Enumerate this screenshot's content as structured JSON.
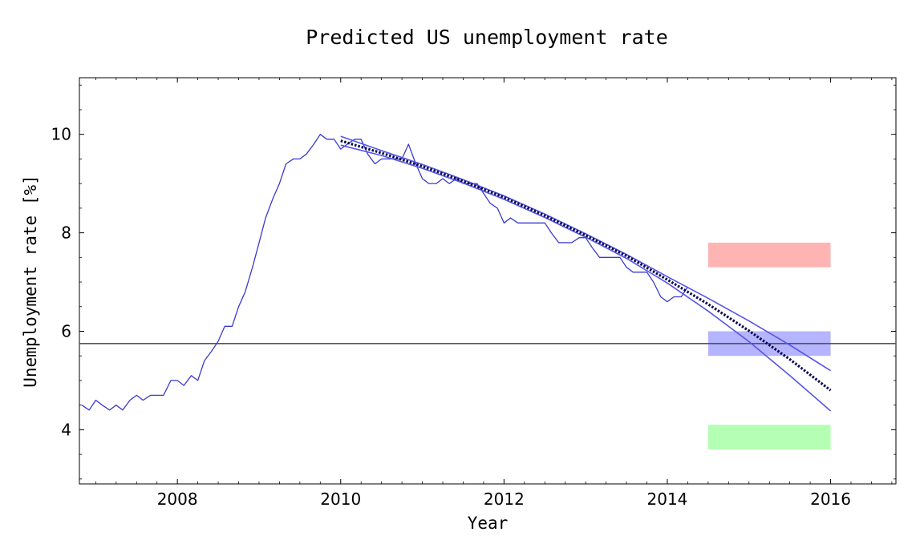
{
  "chart_data": {
    "type": "line",
    "title": "Predicted US unemployment rate",
    "xlabel": "Year",
    "ylabel": "Unemployment rate [%]",
    "xlim": [
      2006.8,
      2016.8
    ],
    "ylim": [
      2.9,
      11.15
    ],
    "x_ticks": [
      2008,
      2010,
      2012,
      2014,
      2016
    ],
    "y_ticks": [
      4,
      6,
      8,
      10
    ],
    "grid": false,
    "colors": {
      "data_line": "#3a3acf",
      "fit_line": "#0a0a50",
      "band_line": "#5555e8",
      "reference_line": "#555555",
      "red_box": "#ffb4b4",
      "blue_box": "#b4b4ff",
      "green_box": "#b4ffb4"
    },
    "series": [
      {
        "kind": "observed",
        "x": [
          2006.83,
          2006.92,
          2007.0,
          2007.08,
          2007.17,
          2007.25,
          2007.33,
          2007.42,
          2007.5,
          2007.58,
          2007.67,
          2007.75,
          2007.83,
          2007.92,
          2008.0,
          2008.08,
          2008.17,
          2008.25,
          2008.33,
          2008.42,
          2008.5,
          2008.58,
          2008.67,
          2008.75,
          2008.83,
          2008.92,
          2009.0,
          2009.08,
          2009.17,
          2009.25,
          2009.33,
          2009.42,
          2009.5,
          2009.58,
          2009.67,
          2009.75,
          2009.83,
          2009.92,
          2010.0,
          2010.08,
          2010.17,
          2010.25,
          2010.33,
          2010.42,
          2010.5,
          2010.58,
          2010.67,
          2010.75,
          2010.83,
          2010.92,
          2011.0,
          2011.08,
          2011.17,
          2011.25,
          2011.33,
          2011.42,
          2011.5,
          2011.58,
          2011.67,
          2011.75,
          2011.83,
          2011.92,
          2012.0,
          2012.08,
          2012.17,
          2012.25,
          2012.33,
          2012.42,
          2012.5,
          2012.58,
          2012.67,
          2012.75,
          2012.83,
          2012.92,
          2013.0,
          2013.08,
          2013.17,
          2013.25,
          2013.33,
          2013.42,
          2013.5,
          2013.58,
          2013.67,
          2013.75,
          2013.83,
          2013.92,
          2014.0,
          2014.08,
          2014.17,
          2014.25
        ],
        "values": [
          4.5,
          4.4,
          4.6,
          4.5,
          4.4,
          4.5,
          4.4,
          4.6,
          4.7,
          4.6,
          4.7,
          4.7,
          4.7,
          5.0,
          5.0,
          4.9,
          5.1,
          5.0,
          5.4,
          5.6,
          5.8,
          6.1,
          6.1,
          6.5,
          6.8,
          7.3,
          7.8,
          8.3,
          8.7,
          9.0,
          9.4,
          9.5,
          9.5,
          9.6,
          9.8,
          10.0,
          9.9,
          9.9,
          9.7,
          9.8,
          9.9,
          9.9,
          9.6,
          9.4,
          9.5,
          9.5,
          9.5,
          9.5,
          9.8,
          9.4,
          9.1,
          9.0,
          9.0,
          9.1,
          9.0,
          9.1,
          9.0,
          9.0,
          9.0,
          8.8,
          8.6,
          8.5,
          8.2,
          8.3,
          8.2,
          8.2,
          8.2,
          8.2,
          8.2,
          8.0,
          7.8,
          7.8,
          7.8,
          7.9,
          7.9,
          7.7,
          7.5,
          7.5,
          7.5,
          7.5,
          7.3,
          7.2,
          7.2,
          7.2,
          7.0,
          6.7,
          6.6,
          6.7,
          6.7,
          6.9
        ]
      },
      {
        "kind": "fit",
        "x": [
          2010.0,
          2010.5,
          2011.0,
          2011.5,
          2012.0,
          2012.5,
          2013.0,
          2013.5,
          2014.0,
          2014.5,
          2015.0,
          2015.5,
          2016.0
        ],
        "values": [
          9.87,
          9.62,
          9.35,
          9.05,
          8.72,
          8.35,
          7.95,
          7.53,
          7.05,
          6.55,
          6.01,
          5.43,
          4.8
        ]
      },
      {
        "kind": "band-upper",
        "x": [
          2010.0,
          2010.5,
          2011.0,
          2011.5,
          2012.0,
          2012.5,
          2013.0,
          2013.5,
          2014.0,
          2014.5,
          2015.0,
          2015.5,
          2016.0
        ],
        "values": [
          9.96,
          9.67,
          9.39,
          9.08,
          8.75,
          8.38,
          7.98,
          7.56,
          7.11,
          6.67,
          6.21,
          5.72,
          5.2
        ]
      },
      {
        "kind": "band-lower",
        "x": [
          2010.0,
          2010.5,
          2011.0,
          2011.5,
          2012.0,
          2012.5,
          2013.0,
          2013.5,
          2014.0,
          2014.5,
          2015.0,
          2015.5,
          2016.0
        ],
        "values": [
          9.78,
          9.57,
          9.31,
          9.01,
          8.68,
          8.31,
          7.91,
          7.48,
          6.98,
          6.41,
          5.79,
          5.1,
          4.38
        ]
      }
    ],
    "reference_line": {
      "y": 5.75
    },
    "boxes": [
      {
        "x0": 2014.5,
        "x1": 2016.0,
        "y0": 7.3,
        "y1": 7.8,
        "color_key": "red_box"
      },
      {
        "x0": 2014.5,
        "x1": 2016.0,
        "y0": 5.5,
        "y1": 6.0,
        "color_key": "blue_box"
      },
      {
        "x0": 2014.5,
        "x1": 2016.0,
        "y0": 3.6,
        "y1": 4.1,
        "color_key": "green_box"
      }
    ]
  }
}
